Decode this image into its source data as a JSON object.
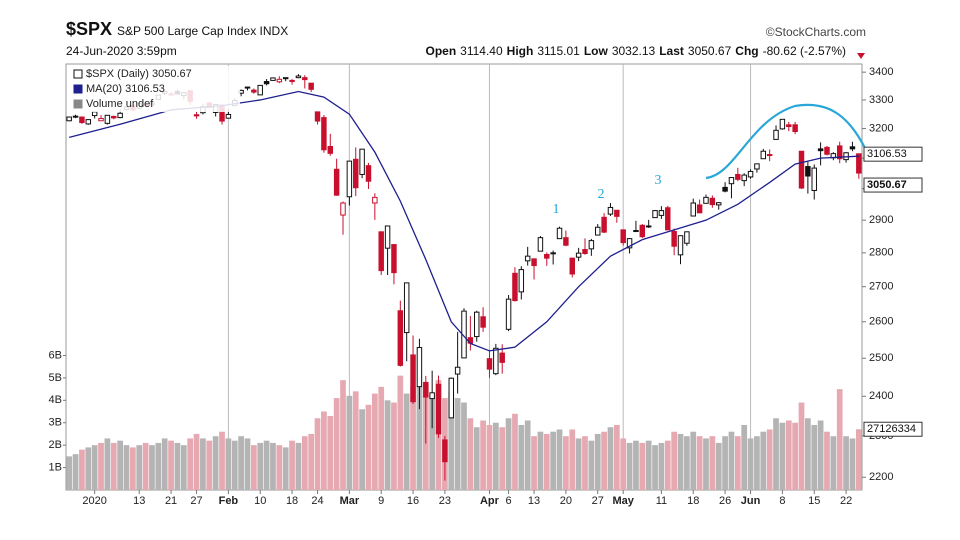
{
  "chart_data": {
    "type": "candlestick",
    "title": "$SPX",
    "subtitle": "S&P 500 Large Cap Index INDX",
    "source": "©StockCharts.com",
    "date": "24-Jun-2020 3:59pm",
    "quote": [
      {
        "label": "Open",
        "value": "3114.40"
      },
      {
        "label": "High",
        "value": "3115.01"
      },
      {
        "label": "Low",
        "value": "3032.13"
      },
      {
        "label": "Last",
        "value": "3050.67"
      },
      {
        "label": "Chg",
        "value": "-80.62 (-2.57%)"
      }
    ],
    "legend": [
      "$SPX (Daily) 3050.67",
      "MA(20) 3106.53",
      "Volume undef"
    ],
    "last_label": "3050.67",
    "ma_label": "3106.53",
    "volume_label": "27126334",
    "annotations": [
      "1",
      "2",
      "3"
    ],
    "log": true,
    "ylim": [
      2170,
      3430
    ],
    "yticks": [
      2200,
      2300,
      2400,
      2500,
      2600,
      2700,
      2800,
      2900,
      3000,
      3100,
      3200,
      3300,
      3400
    ],
    "volume_lim": [
      0,
      19
    ],
    "volume_ticks": [
      {
        "value": 1,
        "label": "1B"
      },
      {
        "value": 2,
        "label": "2B"
      },
      {
        "value": 3,
        "label": "3B"
      },
      {
        "value": 4,
        "label": "4B"
      },
      {
        "value": 5,
        "label": "5B"
      },
      {
        "value": 6,
        "label": "6B"
      }
    ],
    "xlim": [
      0,
      125
    ],
    "xticks": [
      {
        "value": 4,
        "label": "2020"
      },
      {
        "value": 11,
        "label": "13"
      },
      {
        "value": 16,
        "label": "21"
      },
      {
        "value": 20,
        "label": "27"
      },
      {
        "value": 25,
        "label": "Feb"
      },
      {
        "value": 30,
        "label": "10"
      },
      {
        "value": 35,
        "label": "18"
      },
      {
        "value": 39,
        "label": "24"
      },
      {
        "value": 44,
        "label": "Mar"
      },
      {
        "value": 49,
        "label": "9"
      },
      {
        "value": 54,
        "label": "16"
      },
      {
        "value": 59,
        "label": "23"
      },
      {
        "value": 66,
        "label": "Apr"
      },
      {
        "value": 69,
        "label": "6"
      },
      {
        "value": 73,
        "label": "13"
      },
      {
        "value": 78,
        "label": "20"
      },
      {
        "value": 83,
        "label": "27"
      },
      {
        "value": 87,
        "label": "May"
      },
      {
        "value": 93,
        "label": "11"
      },
      {
        "value": 98,
        "label": "18"
      },
      {
        "value": 103,
        "label": "26"
      },
      {
        "value": 107,
        "label": "Jun"
      },
      {
        "value": 112,
        "label": "8"
      },
      {
        "value": 117,
        "label": "15"
      },
      {
        "value": 122,
        "label": "22"
      }
    ],
    "up_color": "#111111",
    "down_color": "#c8102e",
    "ma_color": "#1f1f8f",
    "volume_up_color": "#b4b4b4",
    "volume_down_color": "#e6a9b2",
    "annotation_color": "#29a7d8",
    "open": [
      3227,
      3243,
      3240,
      3216,
      3245,
      3227,
      3218,
      3242,
      3238,
      3266,
      3281,
      3271,
      3285,
      3282,
      3302,
      3324,
      3321,
      3330,
      3316,
      3333,
      3248,
      3255,
      3289,
      3256,
      3282,
      3236,
      3280,
      3324,
      3344,
      3335,
      3318,
      3366,
      3370,
      3365,
      3378,
      3369,
      3380,
      3380,
      3360,
      3258,
      3238,
      3139,
      3063,
      2916,
      2974,
      3096,
      3046,
      3075,
      2954,
      2864,
      2814,
      2825,
      2631,
      2570,
      2509,
      2425,
      2436,
      2394,
      2431,
      2290,
      2345,
      2458,
      2501,
      2556,
      2559,
      2614,
      2499,
      2459,
      2514,
      2579,
      2739,
      2685,
      2776,
      2782,
      2805,
      2795,
      2799,
      2843,
      2846,
      2784,
      2787,
      2810,
      2812,
      2854,
      2909,
      2919,
      2931,
      2870,
      2815,
      2868,
      2884,
      2879,
      2908,
      2915,
      2939,
      2865,
      2794,
      2829,
      2913,
      2948,
      2953,
      2969,
      2948,
      3004,
      3016,
      3046,
      3026,
      3038,
      3064,
      3098,
      3112,
      3163,
      3199,
      3213,
      3213,
      3123,
      3072,
      2994,
      3131,
      3136,
      3101,
      3141,
      3095,
      3138,
      3114.4
    ],
    "high": [
      3241,
      3248,
      3240,
      3232,
      3258,
      3247,
      3247,
      3245,
      3267,
      3276,
      3282,
      3288,
      3294,
      3298,
      3317,
      3330,
      3329,
      3337,
      3326,
      3334,
      3259,
      3285,
      3293,
      3286,
      3282,
      3268,
      3306,
      3337,
      3347,
      3341,
      3352,
      3375,
      3381,
      3385,
      3380,
      3375,
      3393,
      3389,
      3360,
      3259,
      3247,
      3182,
      3098,
      2959,
      3090,
      3136,
      3130,
      3084,
      2985,
      2863,
      2882,
      2825,
      2660,
      2711,
      2562,
      2553,
      2453,
      2467,
      2454,
      2300,
      2449,
      2572,
      2638,
      2616,
      2631,
      2641,
      2522,
      2539,
      2538,
      2676,
      2757,
      2760,
      2818,
      2782,
      2851,
      2801,
      2807,
      2880,
      2868,
      2785,
      2815,
      2844,
      2842,
      2888,
      2922,
      2954,
      2931,
      2870,
      2845,
      2898,
      2888,
      2901,
      2932,
      2944,
      2945,
      2874,
      2853,
      2865,
      2968,
      2965,
      2981,
      2978,
      2957,
      3021,
      3036,
      3068,
      3050,
      3063,
      3081,
      3131,
      3129,
      3211,
      3233,
      3223,
      3223,
      3124,
      3088,
      3079,
      3153,
      3141,
      3120,
      3155,
      3120,
      3155,
      3115.01
    ],
    "low": [
      3225,
      3236,
      3216,
      3213,
      3235,
      3226,
      3214,
      3232,
      3236,
      3263,
      3260,
      3269,
      3277,
      3280,
      3302,
      3318,
      3316,
      3320,
      3302,
      3281,
      3234,
      3249,
      3271,
      3242,
      3214,
      3236,
      3280,
      3313,
      3334,
      3322,
      3318,
      3352,
      3370,
      3360,
      3367,
      3355,
      3378,
      3341,
      3328,
      3214,
      3118,
      3108,
      2977,
      2855,
      2946,
      2976,
      3034,
      2999,
      2901,
      2734,
      2734,
      2707,
      2478,
      2492,
      2380,
      2367,
      2281,
      2319,
      2295,
      2192,
      2345,
      2407,
      2501,
      2521,
      2545,
      2572,
      2448,
      2455,
      2459,
      2574,
      2657,
      2663,
      2762,
      2721,
      2805,
      2761,
      2765,
      2843,
      2820,
      2727,
      2775,
      2794,
      2791,
      2853,
      2860,
      2913,
      2892,
      2822,
      2798,
      2863,
      2845,
      2876,
      2908,
      2904,
      2869,
      2793,
      2766,
      2821,
      2913,
      2922,
      2953,
      2939,
      2933,
      2988,
      2969,
      3024,
      3008,
      3032,
      3052,
      3098,
      3090,
      3163,
      3196,
      3191,
      3181,
      2999,
      2984,
      2965,
      3076,
      3109,
      3093,
      3083,
      3085,
      3123,
      3032.13
    ],
    "close": [
      3240,
      3240,
      3221,
      3231,
      3258,
      3235,
      3246,
      3237,
      3253,
      3275,
      3265,
      3288,
      3283,
      3289,
      3317,
      3330,
      3321,
      3321,
      3326,
      3295,
      3244,
      3276,
      3273,
      3284,
      3226,
      3249,
      3298,
      3334,
      3346,
      3328,
      3352,
      3358,
      3379,
      3374,
      3380,
      3370,
      3386,
      3373,
      3338,
      3226,
      3128,
      3116,
      2979,
      2954,
      3090,
      3003,
      3130,
      3024,
      2972,
      2747,
      2882,
      2741,
      2481,
      2711,
      2386,
      2529,
      2398,
      2409,
      2305,
      2237,
      2447,
      2476,
      2630,
      2541,
      2627,
      2585,
      2471,
      2527,
      2489,
      2664,
      2660,
      2750,
      2790,
      2762,
      2846,
      2784,
      2800,
      2875,
      2823,
      2737,
      2799,
      2798,
      2837,
      2878,
      2863,
      2940,
      2912,
      2831,
      2843,
      2868,
      2849,
      2882,
      2930,
      2930,
      2870,
      2820,
      2852,
      2864,
      2954,
      2923,
      2972,
      2949,
      2955,
      2992,
      3036,
      3030,
      3044,
      3056,
      3081,
      3123,
      3112,
      3194,
      3232,
      3207,
      3190,
      3002,
      3041,
      3067,
      3125,
      3113,
      3115,
      3098,
      3118,
      3131,
      3050.67
    ],
    "volume": [
      1.5,
      1.6,
      1.8,
      1.9,
      2.0,
      2.1,
      2.3,
      2.1,
      2.2,
      2.0,
      1.9,
      2.0,
      2.1,
      2.0,
      2.1,
      2.3,
      2.2,
      2.1,
      2.0,
      2.3,
      2.5,
      2.3,
      2.2,
      2.4,
      2.6,
      2.3,
      2.2,
      2.4,
      2.3,
      2.0,
      2.1,
      2.2,
      2.1,
      2.0,
      1.9,
      2.2,
      2.1,
      2.4,
      2.5,
      3.2,
      3.5,
      3.3,
      4.1,
      4.9,
      4.2,
      4.4,
      3.6,
      3.8,
      4.3,
      4.6,
      4.0,
      3.9,
      5.1,
      4.3,
      4.6,
      4.6,
      4.7,
      4.3,
      4.9,
      4.1,
      4.4,
      4.1,
      3.9,
      3.2,
      2.8,
      3.1,
      2.9,
      3.0,
      2.8,
      3.2,
      3.4,
      2.9,
      3.1,
      2.4,
      2.6,
      2.5,
      2.6,
      2.7,
      2.4,
      2.7,
      2.3,
      2.4,
      2.2,
      2.5,
      2.6,
      2.8,
      2.9,
      2.3,
      2.1,
      2.2,
      2.1,
      2.2,
      2.0,
      2.1,
      2.2,
      2.6,
      2.5,
      2.4,
      2.6,
      2.4,
      2.3,
      2.4,
      2.1,
      2.4,
      2.6,
      2.4,
      2.9,
      2.3,
      2.4,
      2.6,
      2.7,
      3.2,
      3.0,
      3.1,
      3.0,
      3.9,
      3.2,
      2.9,
      3.1,
      2.6,
      2.4,
      4.5,
      2.4,
      2.3,
      2.71
    ],
    "ma20": {
      "x": [
        0,
        8,
        16,
        24,
        30,
        36,
        40,
        44,
        48,
        52,
        56,
        60,
        63,
        66,
        70,
        75,
        80,
        85,
        90,
        95,
        100,
        105,
        110,
        114,
        118,
        124
      ],
      "values": [
        3170,
        3215,
        3265,
        3280,
        3300,
        3330,
        3310,
        3250,
        3120,
        2960,
        2780,
        2600,
        2540,
        2520,
        2530,
        2600,
        2700,
        2790,
        2840,
        2870,
        2900,
        2950,
        3020,
        3080,
        3100,
        3106.53
      ]
    }
  }
}
